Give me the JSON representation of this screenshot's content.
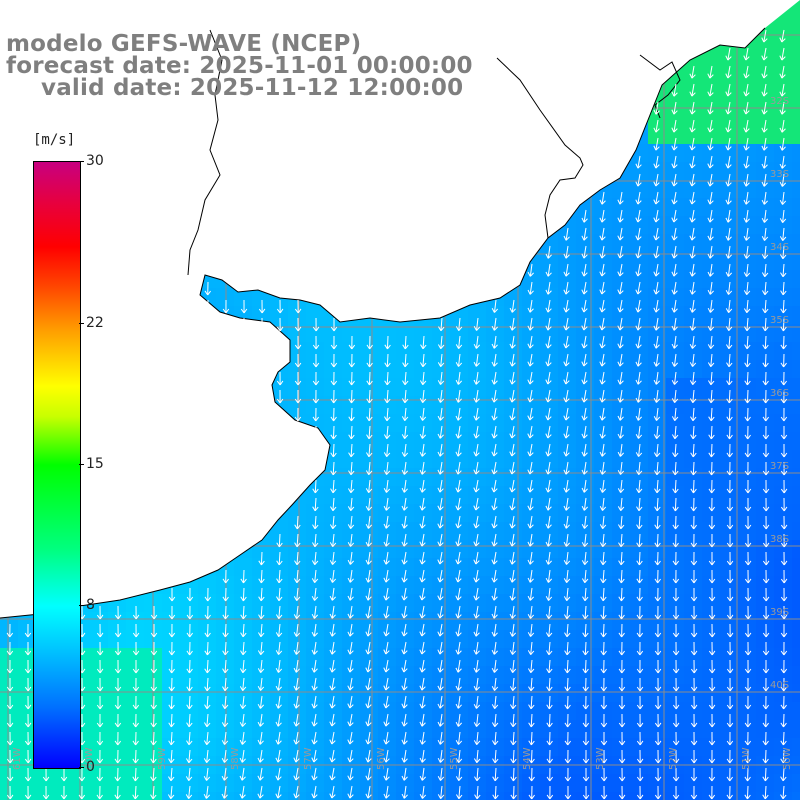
{
  "title": {
    "line1": "modelo GEFS-WAVE (NCEP)",
    "line2": "forecast date: 2025-11-01 00:00:00",
    "line3": "valid date: 2025-11-12 12:00:00"
  },
  "colorbar": {
    "unit": "[m/s]",
    "min": 0,
    "max": 30,
    "tick_labels": [
      "30",
      "22",
      "15",
      "8",
      "0"
    ],
    "tick_values": [
      30,
      22,
      15,
      8,
      0
    ],
    "colors": [
      "#0000ff",
      "#00c8ff",
      "#00ffff",
      "#00ff00",
      "#ffff00",
      "#ff0000",
      "#c80080"
    ]
  },
  "map": {
    "region": "Rio de la Plata / South Atlantic",
    "lon_labels": [
      "61W",
      "60W",
      "59W",
      "58W",
      "57W",
      "56W",
      "55W",
      "54W",
      "53W",
      "52W",
      "51W",
      "50W"
    ],
    "lat_labels": [
      "32S",
      "33S",
      "34S",
      "35S",
      "36S",
      "37S",
      "38S",
      "39S",
      "40S"
    ],
    "field": "wind speed with direction arrows",
    "arrow_direction": "toward south-southwest",
    "land_color": "#ffffff",
    "grid_color": "#8c8c8c",
    "coast_color": "#000000"
  }
}
